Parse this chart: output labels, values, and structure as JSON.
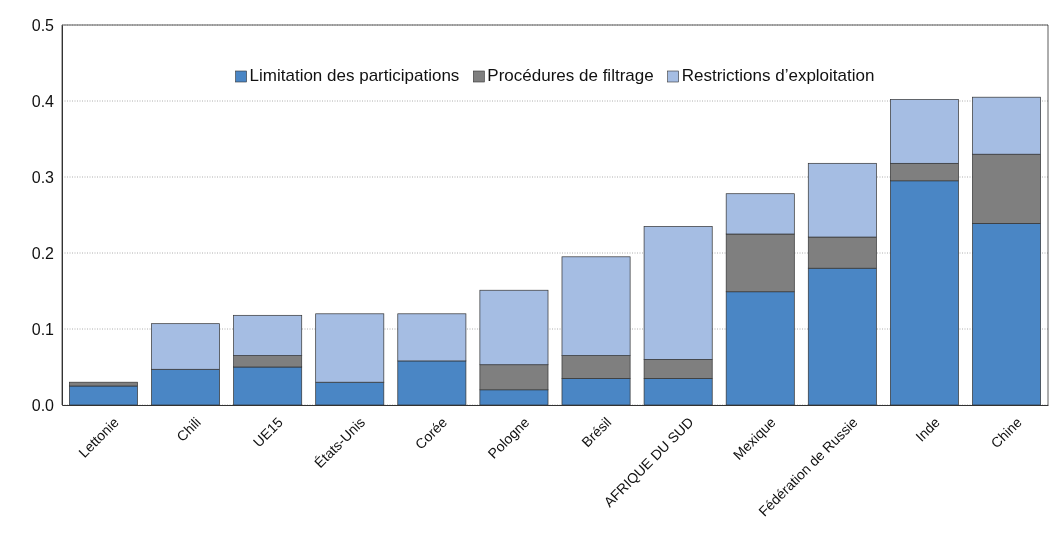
{
  "chart_data": {
    "type": "bar",
    "stacked": true,
    "categories": [
      "Lettonie",
      "Chili",
      "UE15",
      "États-Unis",
      "Corée",
      "Pologne",
      "Brésil",
      "AFRIQUE DU SUD",
      "Mexique",
      "Fédération de Russie",
      "Inde",
      "Chine"
    ],
    "series": [
      {
        "name": "Limitation des participations",
        "color": "#4a86c5",
        "values": [
          0.025,
          0.047,
          0.05,
          0.03,
          0.058,
          0.02,
          0.035,
          0.035,
          0.149,
          0.18,
          0.295,
          0.239
        ]
      },
      {
        "name": "Procédures de filtrage",
        "color": "#7f7f7f",
        "values": [
          0.005,
          0,
          0.015,
          0,
          0,
          0.033,
          0.03,
          0.025,
          0.076,
          0.041,
          0.023,
          0.091
        ]
      },
      {
        "name": "Restrictions d’exploitation",
        "color": "#a5bde3",
        "values": [
          0,
          0.06,
          0.053,
          0.09,
          0.062,
          0.098,
          0.13,
          0.175,
          0.053,
          0.097,
          0.084,
          0.075
        ]
      }
    ],
    "ylim": [
      0,
      0.5
    ],
    "yticks": [
      {
        "value": 0,
        "label": "0.0"
      },
      {
        "value": 0.1,
        "label": "0.1"
      },
      {
        "value": 0.2,
        "label": "0.2"
      },
      {
        "value": 0.3,
        "label": "0.3"
      },
      {
        "value": 0.4,
        "label": "0.4"
      },
      {
        "value": 0.5,
        "label": "0.5"
      }
    ],
    "grid": "y",
    "legend": "top"
  }
}
